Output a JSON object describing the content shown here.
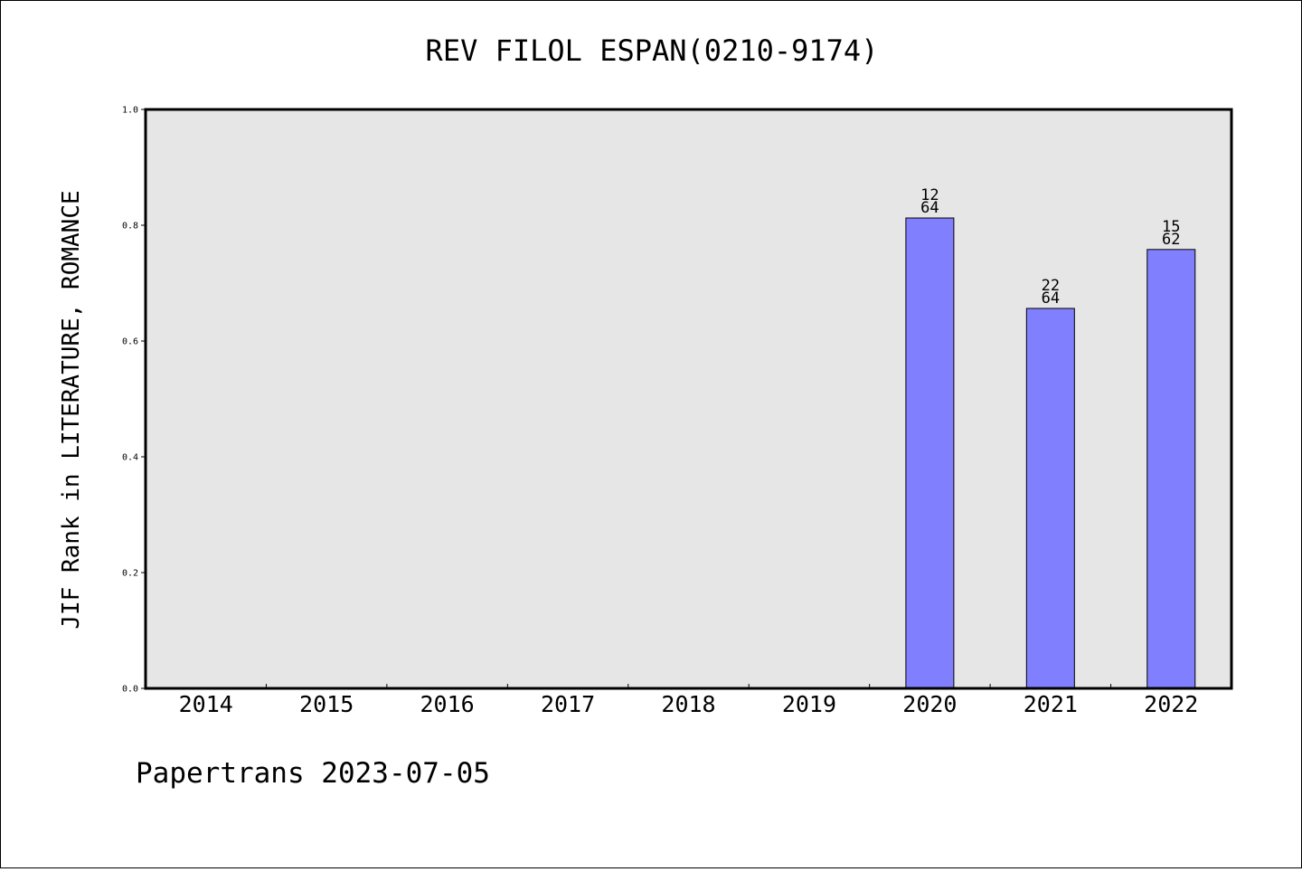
{
  "chart_data": {
    "type": "bar",
    "title": "REV FILOL ESPAN(0210-9174)",
    "xlabel": "",
    "ylabel": "JIF Rank in LITERATURE, ROMANCE",
    "categories": [
      "2014",
      "2015",
      "2016",
      "2017",
      "2018",
      "2019",
      "2020",
      "2021",
      "2022"
    ],
    "values": [
      null,
      null,
      null,
      null,
      null,
      null,
      0.8125,
      0.6563,
      0.7581
    ],
    "bar_labels": [
      null,
      null,
      null,
      null,
      null,
      null,
      {
        "rank": "12",
        "total": "64"
      },
      {
        "rank": "22",
        "total": "64"
      },
      {
        "rank": "15",
        "total": "62"
      }
    ],
    "ylim": [
      0,
      1.0
    ],
    "yticks": [
      "0.0",
      "0.2",
      "0.4",
      "0.6",
      "0.8",
      "1.0"
    ],
    "grid": false,
    "bar_color": "#8080ff",
    "plot_background": "#e6e6e6",
    "footer": "Papertrans 2023-07-05"
  }
}
